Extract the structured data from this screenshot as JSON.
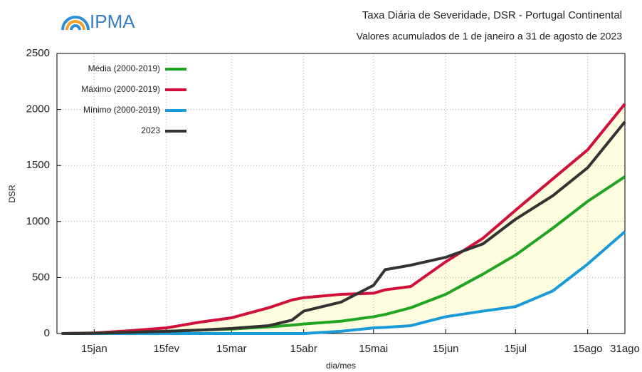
{
  "logo": "IPMA",
  "chart_data": {
    "type": "line",
    "title": "Taxa Diária de Severidade, DSR - Portugal Continental",
    "subtitle": "Valores acumulados de 1 de janeiro a 31 de agosto de 2023",
    "y_label": "DSR",
    "x_label": "dia/mes",
    "x": [
      1,
      15,
      30,
      46,
      60,
      74,
      90,
      100,
      105,
      121,
      135,
      140,
      151,
      166,
      182,
      196,
      212,
      227,
      243
    ],
    "xlim": [
      -1,
      243
    ],
    "xticks": [
      {
        "value": 15,
        "label": "15jan"
      },
      {
        "value": 46,
        "label": "15fev"
      },
      {
        "value": 74,
        "label": "15mar"
      },
      {
        "value": 105,
        "label": "15abr"
      },
      {
        "value": 135,
        "label": "15mai"
      },
      {
        "value": 166,
        "label": "15jun"
      },
      {
        "value": 196,
        "label": "15jul"
      },
      {
        "value": 227,
        "label": "15ago"
      },
      {
        "value": 243,
        "label": "31ago"
      }
    ],
    "ylim": [
      0,
      2500
    ],
    "yticks": [
      0,
      500,
      1000,
      1500,
      2000,
      2500
    ],
    "grid": true,
    "legend": "upper left",
    "band_color": "#fffde0",
    "series": [
      {
        "name": "Média (2000-2019)",
        "color": "#1fa51f",
        "values": [
          0,
          3,
          10,
          20,
          30,
          40,
          60,
          75,
          85,
          110,
          150,
          170,
          230,
          350,
          530,
          700,
          940,
          1180,
          1400
        ]
      },
      {
        "name": "Máximo (2000-2019)",
        "color": "#d0103a",
        "values": [
          0,
          5,
          25,
          50,
          100,
          140,
          230,
          300,
          320,
          350,
          360,
          390,
          420,
          640,
          850,
          1100,
          1380,
          1640,
          2050
        ]
      },
      {
        "name": "Mínimo (2000-2019)",
        "color": "#1a9ad6",
        "values": [
          0,
          0,
          0,
          0,
          0,
          0,
          0,
          0,
          0,
          20,
          50,
          55,
          70,
          150,
          200,
          240,
          380,
          620,
          910
        ]
      },
      {
        "name": "2023",
        "color": "#333333",
        "values": [
          0,
          2,
          10,
          20,
          30,
          45,
          70,
          120,
          200,
          280,
          430,
          570,
          610,
          680,
          800,
          1020,
          1230,
          1480,
          1890
        ]
      }
    ]
  }
}
